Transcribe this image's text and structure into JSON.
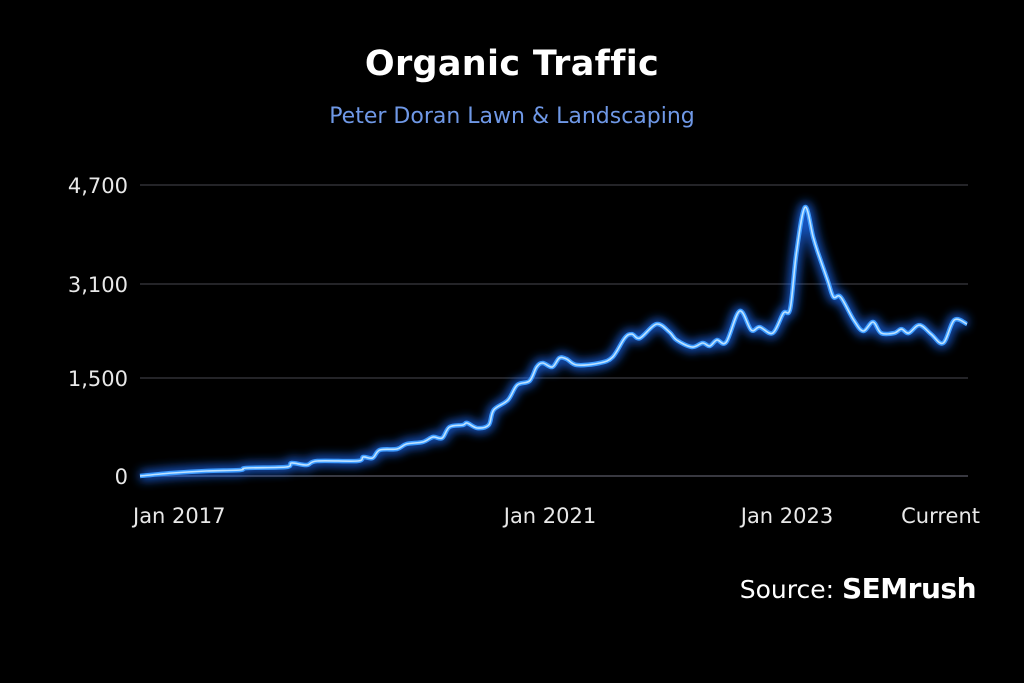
{
  "chart_data": {
    "type": "line",
    "title": "Organic Traffic",
    "subtitle": "Peter Doran Lawn & Landscaping",
    "xlabel": "",
    "ylabel": "",
    "ylim": [
      0,
      4700
    ],
    "grid": true,
    "line_color": "#3d9bff",
    "glow_color": "#1f6fff",
    "y_ticks": [
      {
        "value": 0,
        "label": "0"
      },
      {
        "value": 1500,
        "label": "1,500"
      },
      {
        "value": 3100,
        "label": "3,100"
      },
      {
        "value": 4700,
        "label": "4,700"
      }
    ],
    "x_ticks": [
      {
        "date": "2017-01-01",
        "label": "Jan 2017"
      },
      {
        "date": "2021-01-01",
        "label": "Jan 2021"
      },
      {
        "date": "2023-01-01",
        "label": "Jan 2023"
      },
      {
        "date": "2024-07-05",
        "label": "Current"
      }
    ],
    "series": [
      {
        "points": [
          [
            "2017-01-01",
            0
          ],
          [
            "2017-04-26",
            46
          ],
          [
            "2017-08-25",
            77
          ],
          [
            "2017-12-24",
            92
          ],
          [
            "2018-01-15",
            122
          ],
          [
            "2018-06-06",
            138
          ],
          [
            "2018-06-25",
            199
          ],
          [
            "2018-08-18",
            168
          ],
          [
            "2018-09-24",
            230
          ],
          [
            "2019-02-14",
            230
          ],
          [
            "2019-03-07",
            291
          ],
          [
            "2019-04-09",
            275
          ],
          [
            "2019-05-05",
            398
          ],
          [
            "2019-07-05",
            413
          ],
          [
            "2019-08-08",
            490
          ],
          [
            "2019-10-05",
            520
          ],
          [
            "2019-11-10",
            597
          ],
          [
            "2019-12-13",
            582
          ],
          [
            "2020-01-08",
            750
          ],
          [
            "2020-02-25",
            780
          ],
          [
            "2020-03-11",
            811
          ],
          [
            "2020-04-16",
            735
          ],
          [
            "2020-05-27",
            780
          ],
          [
            "2020-06-14",
            1010
          ],
          [
            "2020-08-04",
            1163
          ],
          [
            "2020-09-06",
            1393
          ],
          [
            "2020-10-20",
            1455
          ],
          [
            "2020-11-14",
            1687
          ],
          [
            "2020-12-06",
            1755
          ],
          [
            "2021-01-08",
            1687
          ],
          [
            "2021-01-30",
            1840
          ],
          [
            "2021-02-21",
            1823
          ],
          [
            "2021-03-25",
            1721
          ],
          [
            "2021-06-03",
            1755
          ],
          [
            "2021-07-13",
            1857
          ],
          [
            "2021-08-19",
            2180
          ],
          [
            "2021-09-10",
            2248
          ],
          [
            "2021-10-05",
            2180
          ],
          [
            "2021-11-25",
            2418
          ],
          [
            "2022-01-04",
            2282
          ],
          [
            "2022-01-26",
            2146
          ],
          [
            "2022-03-14",
            2027
          ],
          [
            "2022-04-16",
            2095
          ],
          [
            "2022-05-08",
            2044
          ],
          [
            "2022-05-30",
            2146
          ],
          [
            "2022-06-28",
            2112
          ],
          [
            "2022-08-08",
            2639
          ],
          [
            "2022-09-13",
            2316
          ],
          [
            "2022-10-09",
            2367
          ],
          [
            "2022-11-18",
            2265
          ],
          [
            "2022-12-21",
            2605
          ],
          [
            "2023-01-11",
            2690
          ],
          [
            "2023-01-30",
            3613
          ],
          [
            "2023-02-25",
            4342
          ],
          [
            "2023-03-22",
            3857
          ],
          [
            "2023-04-06",
            3600
          ],
          [
            "2023-05-05",
            3165
          ],
          [
            "2023-05-23",
            2879
          ],
          [
            "2023-06-14",
            2879
          ],
          [
            "2023-07-24",
            2487
          ],
          [
            "2023-08-22",
            2300
          ],
          [
            "2023-09-21",
            2453
          ],
          [
            "2023-10-16",
            2265
          ],
          [
            "2023-11-25",
            2265
          ],
          [
            "2023-12-17",
            2333
          ],
          [
            "2024-01-08",
            2265
          ],
          [
            "2024-02-10",
            2401
          ],
          [
            "2024-03-17",
            2248
          ],
          [
            "2024-04-23",
            2095
          ],
          [
            "2024-05-27",
            2487
          ],
          [
            "2024-07-05",
            2418
          ]
        ]
      }
    ],
    "source_prefix": "Source:",
    "source_name": "SEMrush"
  }
}
